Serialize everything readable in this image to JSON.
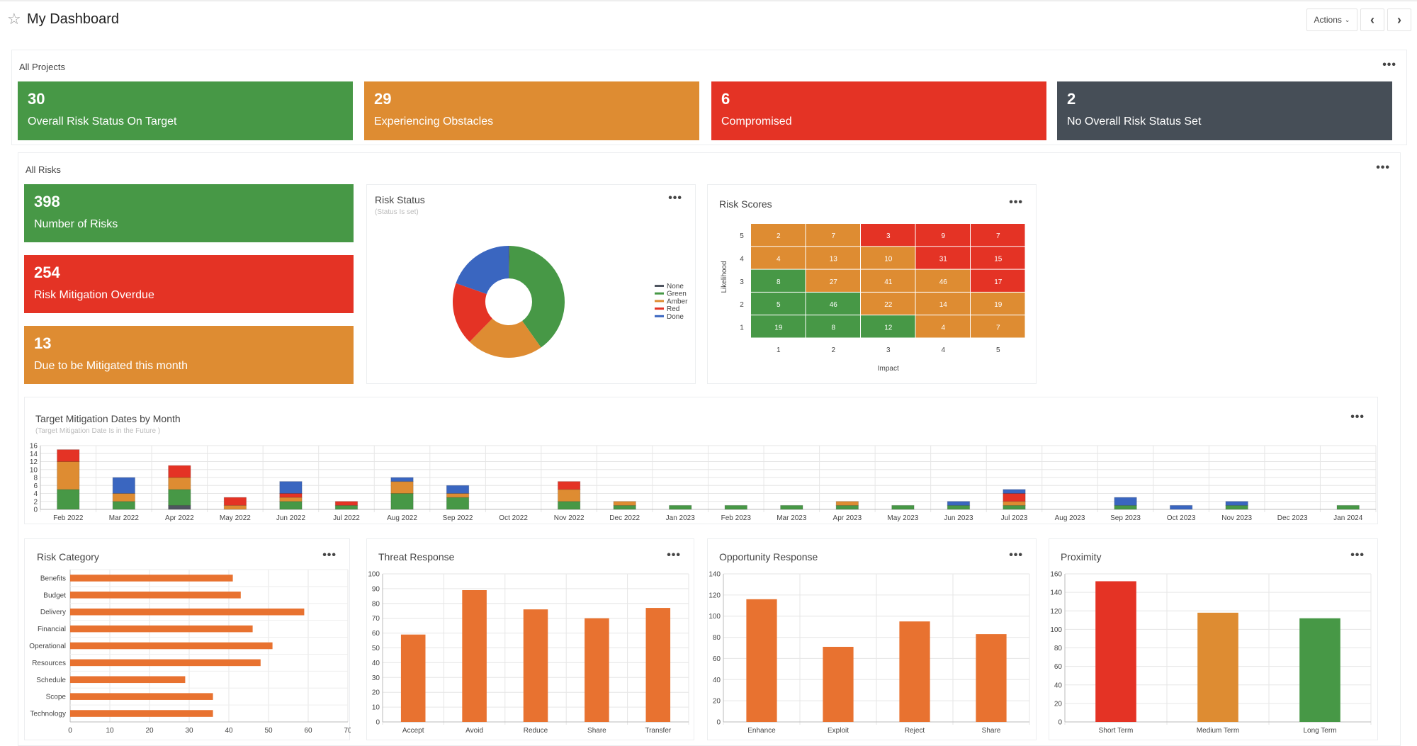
{
  "header": {
    "title": "My Dashboard",
    "actions_label": "Actions",
    "icons": [
      "star-icon",
      "chevron-down-icon",
      "chevron-left-icon",
      "chevron-right-icon"
    ]
  },
  "colors": {
    "green": "#479846",
    "amber": "#de8c32",
    "red": "#e43325",
    "slate": "#464e57",
    "blue": "#3a66c0",
    "none": "#4f5560",
    "orange_bar": "#e87230"
  },
  "all_projects": {
    "title": "All Projects",
    "tiles": [
      {
        "value": "30",
        "label": "Overall Risk Status On Target",
        "color": "#479846"
      },
      {
        "value": "29",
        "label": "Experiencing Obstacles",
        "color": "#de8c32"
      },
      {
        "value": "6",
        "label": "Compromised",
        "color": "#e43325"
      },
      {
        "value": "2",
        "label": "No Overall Risk Status Set",
        "color": "#464e57"
      }
    ]
  },
  "all_risks": {
    "title": "All Risks",
    "tiles": [
      {
        "value": "398",
        "label": "Number of Risks",
        "color": "#479846"
      },
      {
        "value": "254",
        "label": "Risk Mitigation Overdue",
        "color": "#e43325"
      },
      {
        "value": "13",
        "label": "Due to be Mitigated this month",
        "color": "#de8c32"
      }
    ]
  },
  "chart_data": [
    {
      "id": "risk_status",
      "type": "pie",
      "title": "Risk Status",
      "subtitle": "(Status Is set)",
      "legend_position": "right",
      "categories": [
        "None",
        "Green",
        "Amber",
        "Red",
        "Done"
      ],
      "values": [
        1,
        159,
        88,
        72,
        78
      ],
      "colors": [
        "#4f5560",
        "#479846",
        "#de8c32",
        "#e43325",
        "#3a66c0"
      ]
    },
    {
      "id": "risk_scores",
      "type": "heatmap",
      "title": "Risk Scores",
      "xlabel": "Impact",
      "ylabel": "Likelihood",
      "x": [
        1,
        2,
        3,
        4,
        5
      ],
      "y": [
        5,
        4,
        3,
        2,
        1
      ],
      "values": [
        [
          2,
          7,
          3,
          9,
          7
        ],
        [
          4,
          13,
          10,
          31,
          15
        ],
        [
          8,
          27,
          41,
          46,
          17
        ],
        [
          5,
          46,
          22,
          14,
          19
        ],
        [
          19,
          8,
          12,
          4,
          7
        ]
      ],
      "cell_colors": [
        [
          "A",
          "A",
          "R",
          "R",
          "R"
        ],
        [
          "A",
          "A",
          "A",
          "R",
          "R"
        ],
        [
          "G",
          "A",
          "A",
          "A",
          "R"
        ],
        [
          "G",
          "G",
          "A",
          "A",
          "A"
        ],
        [
          "G",
          "G",
          "G",
          "A",
          "A"
        ]
      ]
    },
    {
      "id": "target_mitigation",
      "type": "bar",
      "stacked": true,
      "title": "Target Mitigation Dates by Month",
      "subtitle": "(Target Mitigation Date Is in the Future )",
      "ylim": [
        0,
        16
      ],
      "yticks": [
        0,
        2,
        4,
        6,
        8,
        10,
        12,
        14,
        16
      ],
      "grid": true,
      "categories": [
        "Feb 2022",
        "Mar 2022",
        "Apr 2022",
        "May 2022",
        "Jun 2022",
        "Jul 2022",
        "Aug 2022",
        "Sep 2022",
        "Oct 2022",
        "Nov 2022",
        "Dec 2022",
        "Jan 2023",
        "Feb 2023",
        "Mar 2023",
        "Apr 2023",
        "May 2023",
        "Jun 2023",
        "Jul 2023",
        "Aug 2023",
        "Sep 2023",
        "Oct 2023",
        "Nov 2023",
        "Dec 2023",
        "Jan 2024"
      ],
      "series": [
        {
          "key": "None",
          "color": "#4f5560",
          "values": [
            0,
            0,
            1,
            0,
            0,
            0,
            0,
            0,
            0,
            0,
            0,
            0,
            0,
            0,
            0,
            0,
            0,
            0,
            0,
            0,
            0,
            0,
            0,
            0
          ]
        },
        {
          "key": "Green",
          "color": "#479846",
          "values": [
            5,
            2,
            4,
            0,
            2,
            1,
            4,
            3,
            0,
            2,
            1,
            1,
            1,
            1,
            1,
            1,
            1,
            1,
            0,
            1,
            0,
            1,
            0,
            1
          ]
        },
        {
          "key": "Amber",
          "color": "#de8c32",
          "values": [
            7,
            2,
            3,
            1,
            1,
            0,
            3,
            1,
            0,
            3,
            1,
            0,
            0,
            0,
            1,
            0,
            0,
            1,
            0,
            0,
            0,
            0,
            0,
            0
          ]
        },
        {
          "key": "Red",
          "color": "#e43325",
          "values": [
            3,
            0,
            3,
            2,
            1,
            1,
            0,
            0,
            0,
            2,
            0,
            0,
            0,
            0,
            0,
            0,
            0,
            2,
            0,
            0,
            0,
            0,
            0,
            0
          ]
        },
        {
          "key": "Done",
          "color": "#3a66c0",
          "values": [
            0,
            4,
            0,
            0,
            3,
            0,
            1,
            2,
            0,
            0,
            0,
            0,
            0,
            0,
            0,
            0,
            1,
            1,
            0,
            2,
            1,
            1,
            0,
            0
          ]
        }
      ]
    },
    {
      "id": "risk_category",
      "type": "bar",
      "orientation": "horizontal",
      "title": "Risk Category",
      "xlim": [
        0,
        70
      ],
      "xticks": [
        0,
        10,
        20,
        30,
        40,
        50,
        60,
        70
      ],
      "grid": true,
      "categories": [
        "Benefits",
        "Budget",
        "Delivery",
        "Financial",
        "Operational",
        "Resources",
        "Schedule",
        "Scope",
        "Technology"
      ],
      "values": [
        41,
        43,
        59,
        46,
        51,
        48,
        29,
        36,
        36
      ]
    },
    {
      "id": "threat_response",
      "type": "bar",
      "title": "Threat Response",
      "ylim": [
        0,
        100
      ],
      "yticks": [
        0,
        10,
        20,
        30,
        40,
        50,
        60,
        70,
        80,
        90,
        100
      ],
      "grid": true,
      "categories": [
        "Accept",
        "Avoid",
        "Reduce",
        "Share",
        "Transfer"
      ],
      "values": [
        59,
        89,
        76,
        70,
        77
      ]
    },
    {
      "id": "opportunity_response",
      "type": "bar",
      "title": "Opportunity Response",
      "ylim": [
        0,
        140
      ],
      "yticks": [
        0,
        20,
        40,
        60,
        80,
        100,
        120,
        140
      ],
      "grid": true,
      "categories": [
        "Enhance",
        "Exploit",
        "Reject",
        "Share"
      ],
      "values": [
        116,
        71,
        95,
        83
      ]
    },
    {
      "id": "proximity",
      "type": "bar",
      "title": "Proximity",
      "ylim": [
        0,
        160
      ],
      "yticks": [
        0,
        20,
        40,
        60,
        80,
        100,
        120,
        140,
        160
      ],
      "grid": true,
      "categories": [
        "Short Term",
        "Medium Term",
        "Long Term"
      ],
      "values": [
        152,
        118,
        112
      ],
      "colors": [
        "#e43325",
        "#de8c32",
        "#479846"
      ]
    }
  ]
}
